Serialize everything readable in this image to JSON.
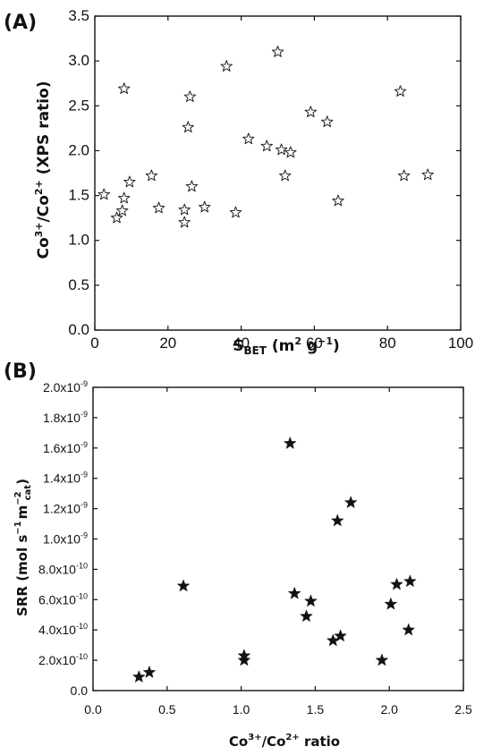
{
  "chart_data": [
    {
      "panel": "(A)",
      "type": "scatter",
      "marker": "hollow-star",
      "xlabel_main": "S",
      "xlabel_sub": "BET",
      "xlabel_rest": " (m",
      "xlabel_sup": "2",
      "xlabel_end": " g",
      "xlabel_sup2": "−1",
      "xlabel_close": ")",
      "ylabel_a": "Co",
      "ylabel_sup1": "3+",
      "ylabel_b": "/Co",
      "ylabel_sup2": "2+",
      "ylabel_c": " (XPS ratio)",
      "xlim": [
        0,
        100
      ],
      "ylim": [
        0,
        3.5
      ],
      "xticks": [
        "0",
        "20",
        "40",
        "60",
        "80",
        "100"
      ],
      "xtick_values": [
        0,
        20,
        40,
        60,
        80,
        100
      ],
      "yticks": [
        "0.0",
        "0.5",
        "1.0",
        "1.5",
        "2.0",
        "2.5",
        "3.0",
        "3.5"
      ],
      "ytick_values": [
        0,
        0.5,
        1.0,
        1.5,
        2.0,
        2.5,
        3.0,
        3.5
      ],
      "points": [
        [
          2.5,
          1.51
        ],
        [
          6,
          1.25
        ],
        [
          7.5,
          1.33
        ],
        [
          8,
          1.47
        ],
        [
          8,
          2.69
        ],
        [
          9.5,
          1.65
        ],
        [
          15.5,
          1.72
        ],
        [
          17.5,
          1.36
        ],
        [
          24.5,
          1.34
        ],
        [
          24.5,
          1.2
        ],
        [
          25.5,
          2.26
        ],
        [
          26,
          2.6
        ],
        [
          26.5,
          1.6
        ],
        [
          30,
          1.37
        ],
        [
          36,
          2.94
        ],
        [
          38.5,
          1.31
        ],
        [
          42,
          2.13
        ],
        [
          47,
          2.05
        ],
        [
          50,
          3.1
        ],
        [
          51,
          2.01
        ],
        [
          52,
          1.72
        ],
        [
          53.5,
          1.98
        ],
        [
          59,
          2.43
        ],
        [
          63.5,
          2.32
        ],
        [
          66.5,
          1.44
        ],
        [
          83.5,
          2.66
        ],
        [
          84.5,
          1.72
        ],
        [
          91,
          1.73
        ]
      ]
    },
    {
      "panel": "(B)",
      "type": "scatter",
      "marker": "filled-star",
      "xlabel_a": "Co",
      "xlabel_sup1": "3+",
      "xlabel_b": "/Co",
      "xlabel_sup2": "2+",
      "xlabel_c": " ratio",
      "ylabel_a": "SRR (mol s",
      "ylabel_sup1": "−1",
      "ylabel_b": "m",
      "ylabel_sup2": "−2",
      "ylabel_sub": "cat",
      "ylabel_c": ")",
      "xlim": [
        0,
        2.5
      ],
      "ylim": [
        0,
        2e-09
      ],
      "xticks": [
        "0.0",
        "0.5",
        "1.0",
        "1.5",
        "2.0",
        "2.5"
      ],
      "xtick_values": [
        0,
        0.5,
        1.0,
        1.5,
        2.0,
        2.5
      ],
      "yticks": [
        "0.0",
        "2.0x10",
        "4.0x10",
        "6.0x10",
        "8.0x10",
        "1.0x10",
        "1.2x10",
        "1.4x10",
        "1.6x10",
        "1.8x10",
        "2.0x10"
      ],
      "ytick_exps": [
        "",
        "-10",
        "-10",
        "-10",
        "-10",
        "-9",
        "-9",
        "-9",
        "-9",
        "-9",
        "-9"
      ],
      "ytick_values": [
        0,
        2e-10,
        4e-10,
        6e-10,
        8e-10,
        1e-09,
        1.2e-09,
        1.4e-09,
        1.6e-09,
        1.8e-09,
        2e-09
      ],
      "points": [
        [
          0.31,
          9e-11
        ],
        [
          0.38,
          1.2e-10
        ],
        [
          0.61,
          6.9e-10
        ],
        [
          1.02,
          2.3e-10
        ],
        [
          1.02,
          2e-10
        ],
        [
          1.33,
          1.63e-09
        ],
        [
          1.36,
          6.4e-10
        ],
        [
          1.44,
          4.9e-10
        ],
        [
          1.47,
          5.9e-10
        ],
        [
          1.62,
          3.3e-10
        ],
        [
          1.65,
          1.12e-09
        ],
        [
          1.67,
          3.6e-10
        ],
        [
          1.74,
          1.24e-09
        ],
        [
          1.95,
          2e-10
        ],
        [
          2.01,
          5.7e-10
        ],
        [
          2.05,
          7e-10
        ],
        [
          2.13,
          4e-10
        ],
        [
          2.14,
          7.2e-10
        ]
      ]
    }
  ]
}
